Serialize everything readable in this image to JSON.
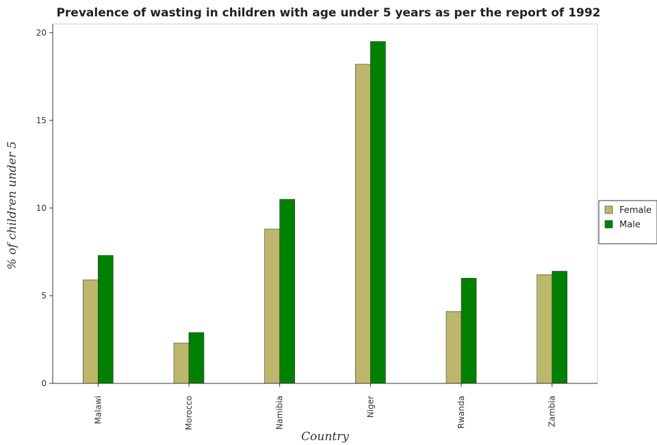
{
  "chart_data": {
    "type": "bar",
    "title": "Prevalence of wasting in children with age under 5 years as per the report of 1992",
    "xlabel": "Country",
    "ylabel": "% of children under 5",
    "categories": [
      "Malawi",
      "Morocco",
      "Namibia",
      "Niger",
      "Rwanda",
      "Zambia"
    ],
    "series": [
      {
        "name": "Female",
        "color": "#bdb76b",
        "values": [
          5.9,
          2.3,
          8.8,
          18.2,
          4.1,
          6.2
        ]
      },
      {
        "name": "Male",
        "color": "#008000",
        "values": [
          7.3,
          2.9,
          10.5,
          19.5,
          6.0,
          6.4
        ]
      }
    ],
    "yticks": [
      0,
      5,
      10,
      15,
      20
    ],
    "ylim": [
      0,
      20.5
    ],
    "legend_position": "right",
    "grid": false
  }
}
